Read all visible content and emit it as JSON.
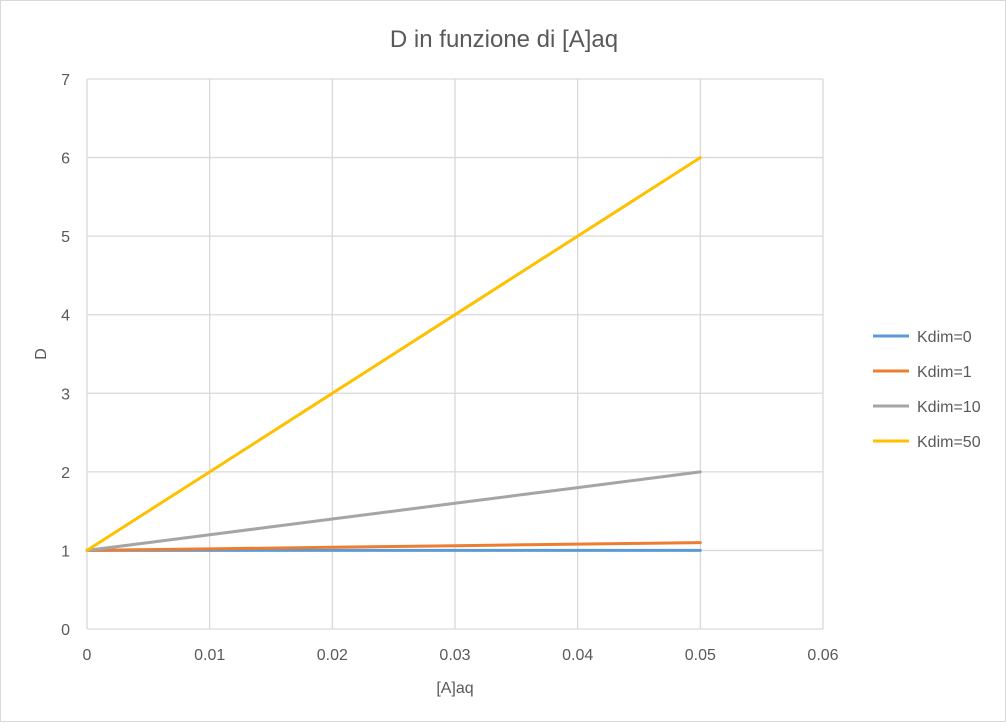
{
  "chart_data": {
    "type": "line",
    "title": "D in funzione di [A]aq",
    "xlabel": "[A]aq",
    "ylabel": "D",
    "xlim": [
      0,
      0.06
    ],
    "ylim": [
      0,
      7
    ],
    "x_ticks": [
      "0",
      "0.01",
      "0.02",
      "0.03",
      "0.04",
      "0.05",
      "0.06"
    ],
    "y_ticks": [
      "0",
      "1",
      "2",
      "3",
      "4",
      "5",
      "6",
      "7"
    ],
    "grid": true,
    "legend_position": "right",
    "x": [
      0,
      0.005,
      0.01,
      0.015,
      0.02,
      0.025,
      0.03,
      0.035,
      0.04,
      0.045,
      0.05
    ],
    "series": [
      {
        "name": "Kdim=0",
        "color": "#5b9bd5",
        "values": [
          1,
          1,
          1,
          1,
          1,
          1,
          1,
          1,
          1,
          1,
          1
        ]
      },
      {
        "name": "Kdim=1",
        "color": "#ed7d31",
        "values": [
          1,
          1.01,
          1.02,
          1.03,
          1.04,
          1.05,
          1.06,
          1.07,
          1.08,
          1.09,
          1.1
        ]
      },
      {
        "name": "Kdim=10",
        "color": "#a5a5a5",
        "values": [
          1,
          1.1,
          1.2,
          1.3,
          1.4,
          1.5,
          1.6,
          1.7,
          1.8,
          1.9,
          2.0
        ]
      },
      {
        "name": "Kdim=50",
        "color": "#ffc000",
        "values": [
          1,
          1.5,
          2.0,
          2.5,
          3.0,
          3.5,
          4.0,
          4.5,
          5.0,
          5.5,
          6.0
        ]
      }
    ]
  }
}
